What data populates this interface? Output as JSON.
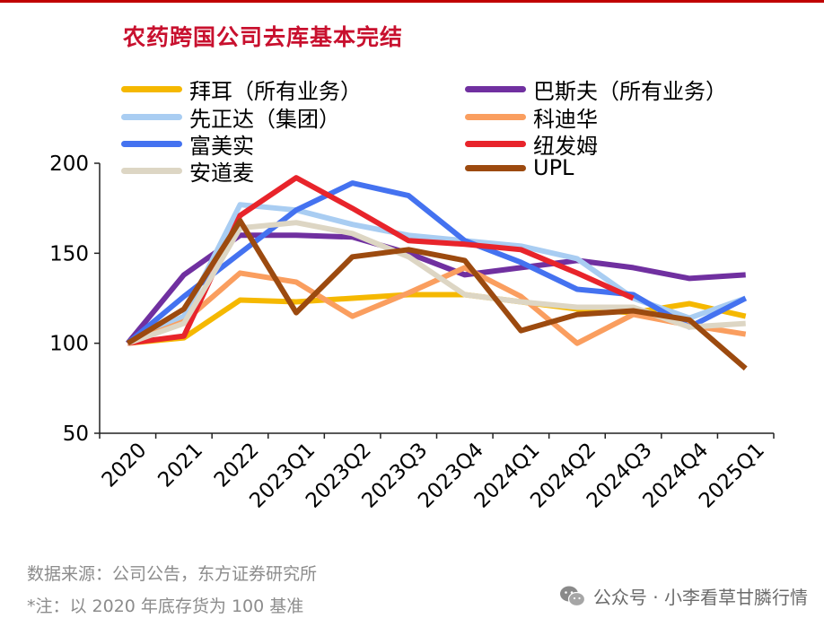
{
  "title": "农药跨国公司去库基本完结",
  "source_note": "数据来源：公司公告，东方证券研究所",
  "footnote": "*注：以 2020 年底存货为 100 基准",
  "watermark": {
    "text": "公众号 · 小李看草甘膦行情",
    "icon": "wechat-icon"
  },
  "chart_data": {
    "type": "line",
    "title": "农药跨国公司去库基本完结",
    "xlabel": "",
    "ylabel": "",
    "ylim": [
      50,
      200
    ],
    "yticks": [
      50,
      100,
      150,
      200
    ],
    "grid": false,
    "legend_placement": "top",
    "categories": [
      "2020",
      "2021",
      "2022",
      "2023Q1",
      "2023Q2",
      "2023Q3",
      "2023Q4",
      "2024Q1",
      "2024Q2",
      "2024Q3",
      "2024Q4",
      "2025Q1"
    ],
    "series": [
      {
        "name": "拜耳（所有业务）",
        "color": "#f5b800",
        "values": [
          100,
          103,
          124,
          123,
          125,
          127,
          127,
          123,
          119,
          117,
          122,
          115
        ]
      },
      {
        "name": "巴斯夫（所有业务）",
        "color": "#7030a0",
        "values": [
          100,
          138,
          160,
          160,
          159,
          150,
          138,
          142,
          146,
          142,
          136,
          138
        ]
      },
      {
        "name": "先正达（集团）",
        "color": "#a9cdf2",
        "values": [
          100,
          115,
          177,
          174,
          166,
          160,
          157,
          154,
          147,
          125,
          114,
          125
        ]
      },
      {
        "name": "科迪华",
        "color": "#fa9e5f",
        "values": [
          100,
          112,
          139,
          134,
          115,
          128,
          142,
          126,
          100,
          116,
          110,
          105
        ]
      },
      {
        "name": "富美实",
        "color": "#4472f0",
        "values": [
          100,
          126,
          150,
          174,
          189,
          182,
          157,
          145,
          130,
          127,
          109,
          125
        ]
      },
      {
        "name": "纽发姆",
        "color": "#e8242b",
        "values": [
          100,
          104,
          171,
          192,
          175,
          157,
          155,
          152,
          139,
          125,
          null,
          null
        ]
      },
      {
        "name": "安道麦",
        "color": "#ddd6c4",
        "values": [
          100,
          111,
          164,
          167,
          161,
          148,
          127,
          123,
          120,
          120,
          109,
          111
        ]
      },
      {
        "name": "UPL",
        "color": "#9c4a0f",
        "values": [
          100,
          119,
          168,
          117,
          148,
          152,
          146,
          107,
          116,
          118,
          113,
          86
        ]
      }
    ]
  }
}
